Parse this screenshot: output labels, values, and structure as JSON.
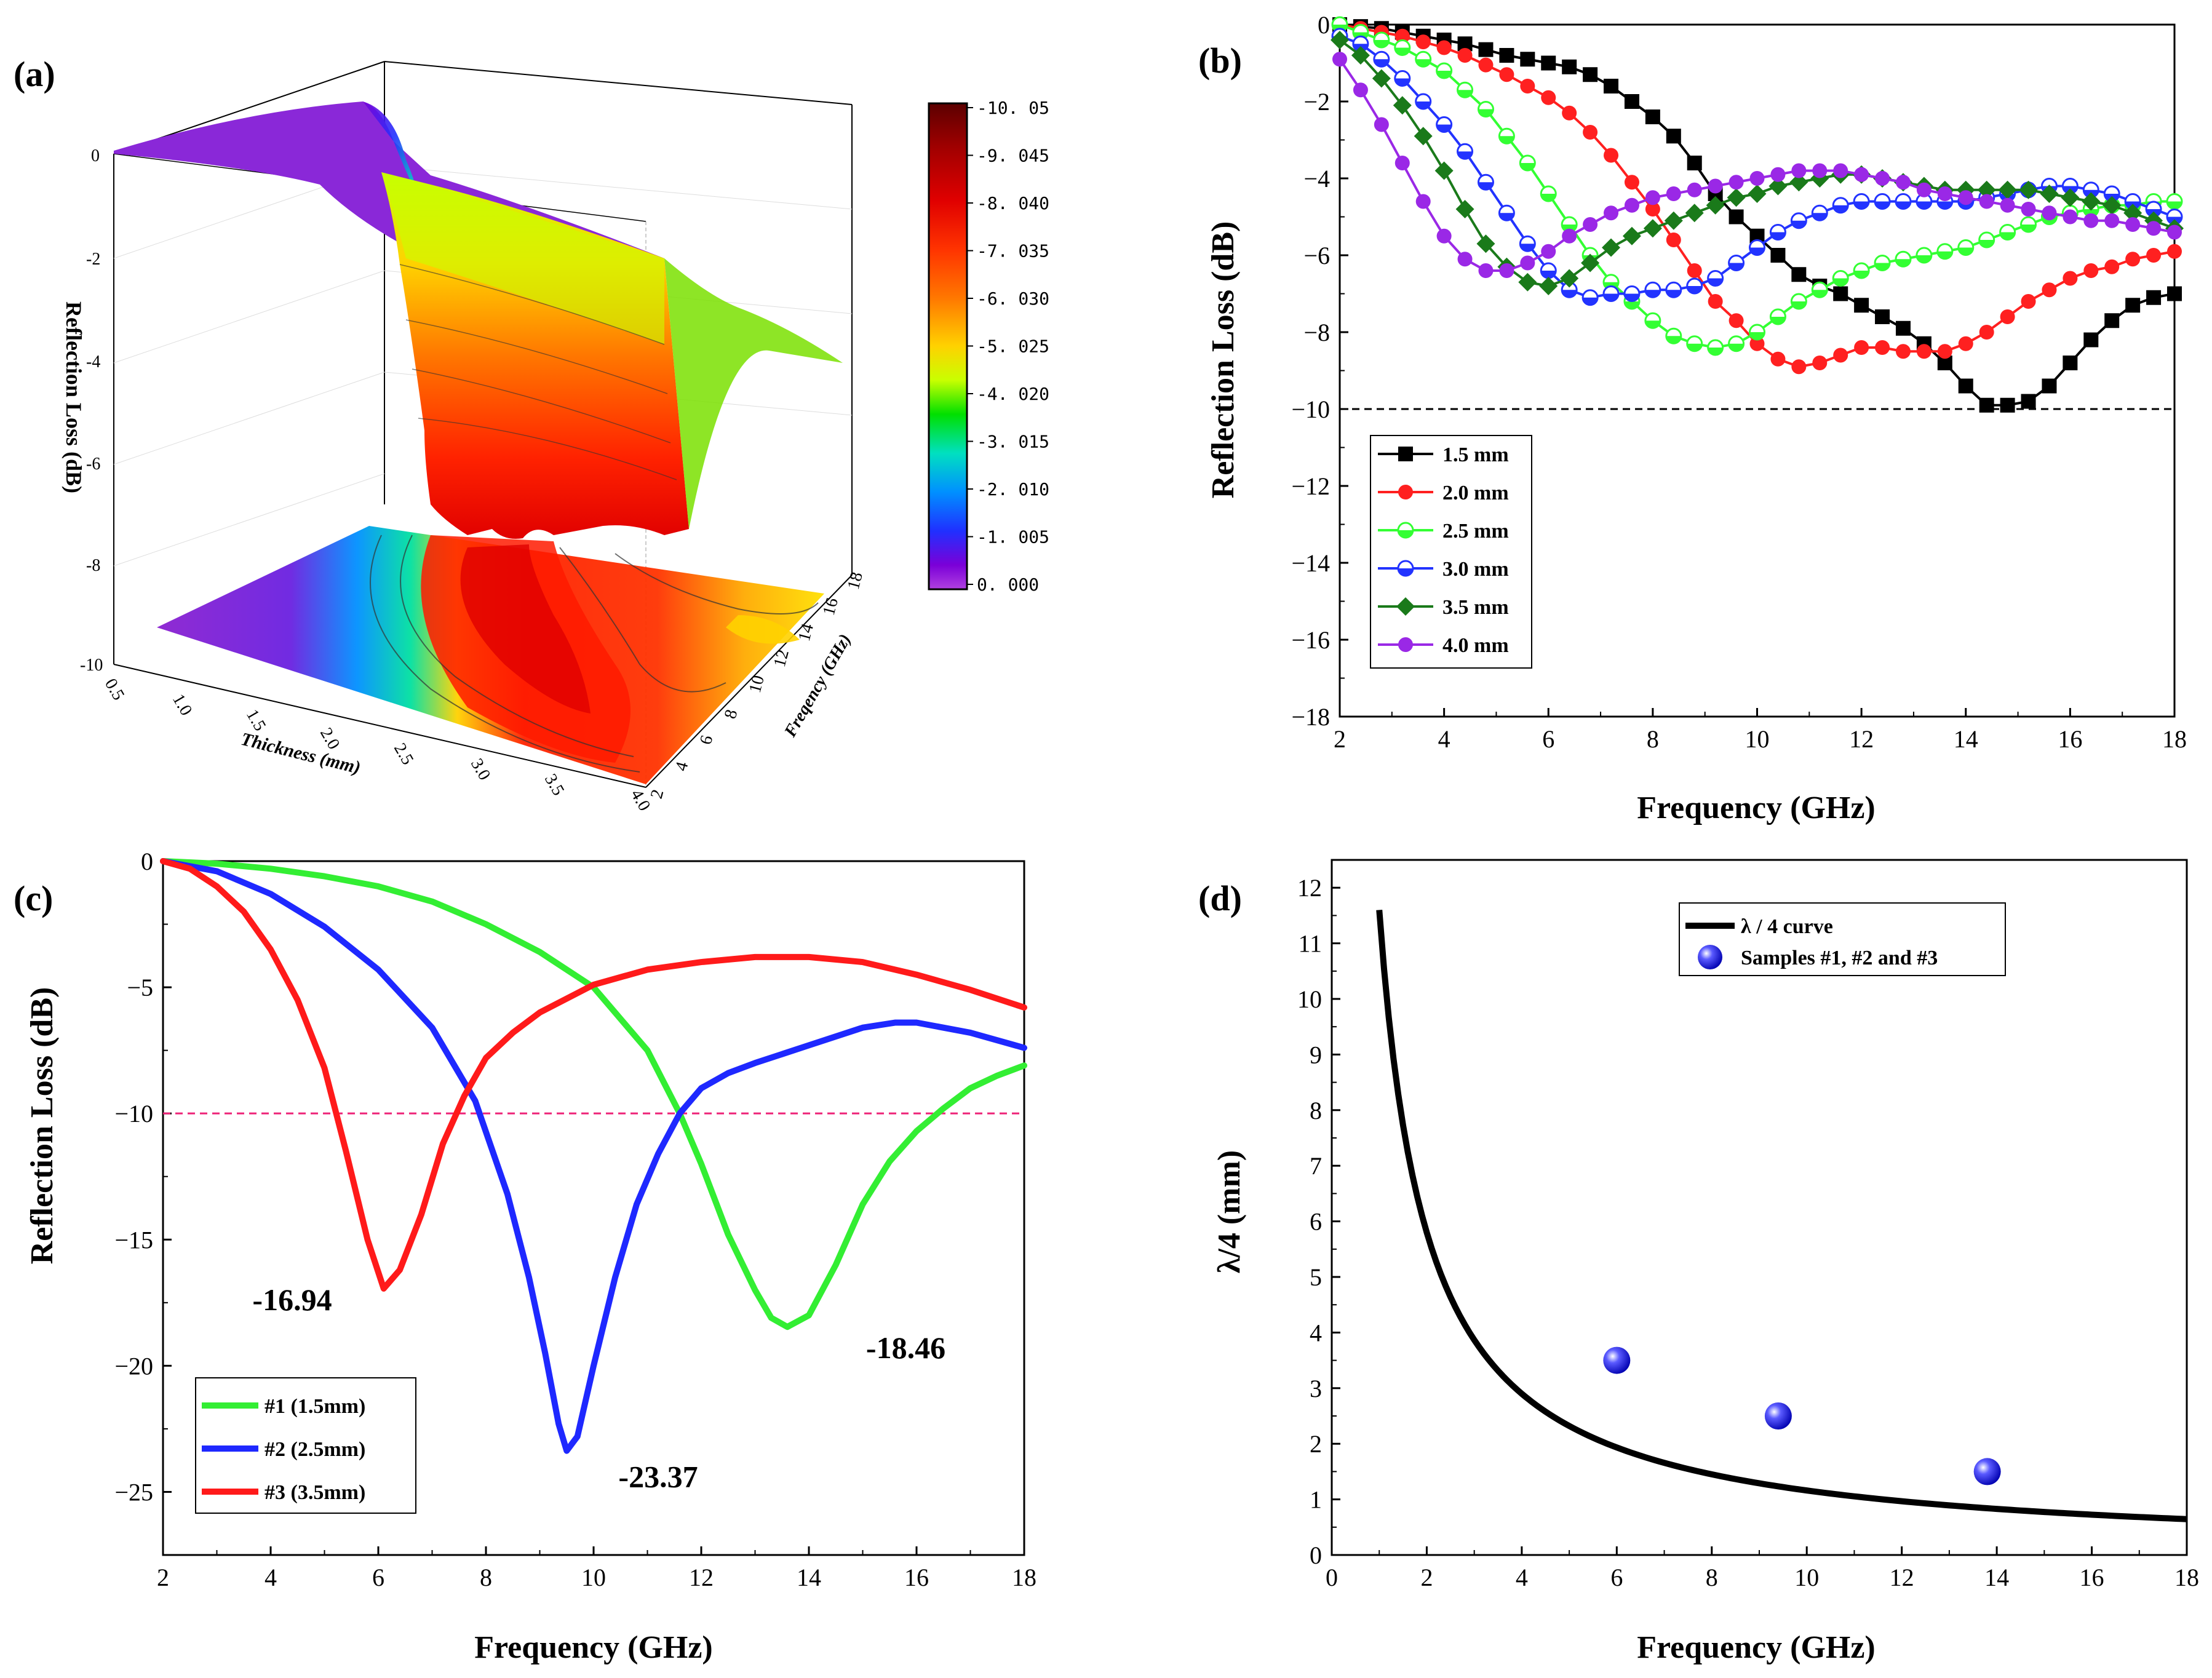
{
  "panels": {
    "a": {
      "label": "(a)"
    },
    "b": {
      "label": "(b)"
    },
    "c": {
      "label": "(c)"
    },
    "d": {
      "label": "(d)"
    }
  },
  "chart_data": [
    {
      "id": "a",
      "type": "surface3d",
      "zlabel": "Reflection Loss (dB)",
      "xlabel": "Thickness (mm)",
      "ylabel": "Freqency (GHz)",
      "z_ticks": [
        "0",
        "-2",
        "-4",
        "-6",
        "-8",
        "-10"
      ],
      "x_ticks": [
        "0.5",
        "1.0",
        "1.5",
        "2.0",
        "2.5",
        "3.0",
        "3.5",
        "4.0"
      ],
      "y_ticks": [
        "2",
        "4",
        "6",
        "8",
        "10",
        "12",
        "14",
        "16",
        "18"
      ],
      "colorbar": {
        "ticks": [
          "-10. 05",
          "-9. 045",
          "-8. 040",
          "-7. 035",
          "-6. 030",
          "-5. 025",
          "-4. 020",
          "-3. 015",
          "-2. 010",
          "-1. 005",
          "0. 000"
        ],
        "colors": [
          "#5c0000",
          "#a00000",
          "#e00000",
          "#ff3300",
          "#ff7700",
          "#ffd200",
          "#c8ff00",
          "#00e000",
          "#00e0c0",
          "#0090ff",
          "#2030ff",
          "#7a00d8",
          "#b040e0"
        ]
      }
    },
    {
      "id": "b",
      "type": "line",
      "xlabel": "Frequency (GHz)",
      "ylabel": "Reflection Loss (dB)",
      "xlim": [
        2,
        18
      ],
      "ylim": [
        -18,
        0
      ],
      "xticks": [
        2,
        4,
        6,
        8,
        10,
        12,
        14,
        16,
        18
      ],
      "yticks": [
        0,
        -2,
        -4,
        -6,
        -8,
        -10,
        -12,
        -14,
        -16,
        -18
      ],
      "reference_line": -10,
      "x": [
        2.0,
        2.4,
        2.8,
        3.2,
        3.6,
        4.0,
        4.4,
        4.8,
        5.2,
        5.6,
        6.0,
        6.4,
        6.8,
        7.2,
        7.6,
        8.0,
        8.4,
        8.8,
        9.2,
        9.6,
        10.0,
        10.4,
        10.8,
        11.2,
        11.6,
        12.0,
        12.4,
        12.8,
        13.2,
        13.6,
        14.0,
        14.4,
        14.8,
        15.2,
        15.6,
        16.0,
        16.4,
        16.8,
        17.2,
        17.6,
        18.0
      ],
      "series": [
        {
          "name": "1.5 mm",
          "color": "#000000",
          "marker": "square",
          "values": [
            0,
            -0.05,
            -0.1,
            -0.2,
            -0.3,
            -0.4,
            -0.5,
            -0.65,
            -0.8,
            -0.9,
            -1.0,
            -1.1,
            -1.3,
            -1.6,
            -2.0,
            -2.4,
            -2.9,
            -3.6,
            -4.4,
            -5.0,
            -5.5,
            -6.0,
            -6.5,
            -6.8,
            -7.0,
            -7.3,
            -7.6,
            -7.9,
            -8.3,
            -8.8,
            -9.4,
            -9.9,
            -9.9,
            -9.8,
            -9.4,
            -8.8,
            -8.2,
            -7.7,
            -7.3,
            -7.1,
            -7.0
          ]
        },
        {
          "name": "2.0 mm",
          "color": "#ff2020",
          "marker": "circle",
          "values": [
            0,
            -0.1,
            -0.2,
            -0.3,
            -0.45,
            -0.6,
            -0.8,
            -1.05,
            -1.3,
            -1.6,
            -1.9,
            -2.3,
            -2.8,
            -3.4,
            -4.1,
            -4.8,
            -5.6,
            -6.4,
            -7.2,
            -7.7,
            -8.3,
            -8.7,
            -8.9,
            -8.8,
            -8.6,
            -8.4,
            -8.4,
            -8.5,
            -8.5,
            -8.5,
            -8.3,
            -8.0,
            -7.6,
            -7.2,
            -6.9,
            -6.6,
            -6.4,
            -6.3,
            -6.1,
            -6.0,
            -5.9
          ]
        },
        {
          "name": "2.5 mm",
          "color": "#33ff33",
          "marker": "halfcircle",
          "values": [
            0,
            -0.2,
            -0.4,
            -0.6,
            -0.9,
            -1.2,
            -1.7,
            -2.2,
            -2.9,
            -3.6,
            -4.4,
            -5.2,
            -6.0,
            -6.7,
            -7.2,
            -7.7,
            -8.1,
            -8.3,
            -8.4,
            -8.3,
            -8.0,
            -7.6,
            -7.2,
            -6.9,
            -6.6,
            -6.4,
            -6.2,
            -6.1,
            -6.0,
            -5.9,
            -5.8,
            -5.6,
            -5.4,
            -5.2,
            -5.0,
            -4.9,
            -4.8,
            -4.7,
            -4.7,
            -4.6,
            -4.6
          ]
        },
        {
          "name": "3.0 mm",
          "color": "#2233ff",
          "marker": "halfcircle",
          "values": [
            -0.3,
            -0.5,
            -0.9,
            -1.4,
            -2.0,
            -2.6,
            -3.3,
            -4.1,
            -4.9,
            -5.7,
            -6.4,
            -6.9,
            -7.1,
            -7.0,
            -7.0,
            -6.9,
            -6.9,
            -6.8,
            -6.6,
            -6.2,
            -5.8,
            -5.4,
            -5.1,
            -4.9,
            -4.7,
            -4.6,
            -4.6,
            -4.6,
            -4.6,
            -4.6,
            -4.6,
            -4.5,
            -4.4,
            -4.3,
            -4.2,
            -4.2,
            -4.3,
            -4.4,
            -4.6,
            -4.8,
            -5.0
          ]
        },
        {
          "name": "3.5 mm",
          "color": "#1a7a1a",
          "marker": "diamond",
          "values": [
            -0.4,
            -0.8,
            -1.4,
            -2.1,
            -2.9,
            -3.8,
            -4.8,
            -5.7,
            -6.3,
            -6.7,
            -6.8,
            -6.6,
            -6.2,
            -5.8,
            -5.5,
            -5.3,
            -5.1,
            -4.9,
            -4.7,
            -4.5,
            -4.4,
            -4.2,
            -4.1,
            -4.0,
            -3.9,
            -3.9,
            -4.0,
            -4.1,
            -4.2,
            -4.3,
            -4.3,
            -4.3,
            -4.3,
            -4.3,
            -4.4,
            -4.5,
            -4.6,
            -4.7,
            -4.9,
            -5.1,
            -5.3
          ]
        },
        {
          "name": "4.0 mm",
          "color": "#9a28e6",
          "marker": "circle",
          "values": [
            -0.9,
            -1.7,
            -2.6,
            -3.6,
            -4.6,
            -5.5,
            -6.1,
            -6.4,
            -6.4,
            -6.2,
            -5.9,
            -5.5,
            -5.2,
            -4.9,
            -4.7,
            -4.5,
            -4.4,
            -4.3,
            -4.2,
            -4.1,
            -4.0,
            -3.9,
            -3.8,
            -3.8,
            -3.8,
            -3.9,
            -4.0,
            -4.1,
            -4.3,
            -4.4,
            -4.5,
            -4.6,
            -4.7,
            -4.8,
            -4.9,
            -5.0,
            -5.1,
            -5.1,
            -5.2,
            -5.3,
            -5.4
          ]
        }
      ]
    },
    {
      "id": "c",
      "type": "line",
      "xlabel": "Frequency (GHz)",
      "ylabel": "Reflection Loss (dB)",
      "xlim": [
        2,
        18
      ],
      "ylim": [
        -27.5,
        0
      ],
      "xticks": [
        2,
        4,
        6,
        8,
        10,
        12,
        14,
        16,
        18
      ],
      "yticks": [
        0,
        -5,
        -10,
        -15,
        -20,
        -25
      ],
      "reference_line": -10,
      "series": [
        {
          "name": "#1 (1.5mm)",
          "color": "#33ee33",
          "x": [
            2,
            3,
            4,
            5,
            6,
            7,
            8,
            9,
            10,
            11,
            11.6,
            12,
            12.5,
            13,
            13.3,
            13.6,
            14,
            14.5,
            15,
            15.5,
            16,
            16.5,
            17,
            17.5,
            18
          ],
          "values": [
            0,
            -0.1,
            -0.3,
            -0.6,
            -1.0,
            -1.6,
            -2.5,
            -3.6,
            -5.0,
            -7.5,
            -10.0,
            -12.0,
            -14.8,
            -17.0,
            -18.1,
            -18.46,
            -18.0,
            -16.0,
            -13.6,
            -11.9,
            -10.7,
            -9.8,
            -9.0,
            -8.5,
            -8.1
          ]
        },
        {
          "name": "#2 (2.5mm)",
          "color": "#1e28ff",
          "x": [
            2,
            3,
            4,
            5,
            6,
            7,
            7.8,
            8.4,
            8.8,
            9.1,
            9.35,
            9.5,
            9.7,
            10,
            10.4,
            10.8,
            11.2,
            11.6,
            12,
            12.5,
            13,
            14,
            15,
            15.6,
            16,
            17,
            18
          ],
          "values": [
            0,
            -0.4,
            -1.3,
            -2.6,
            -4.3,
            -6.6,
            -9.5,
            -13.2,
            -16.5,
            -19.5,
            -22.3,
            -23.37,
            -22.8,
            -20.0,
            -16.5,
            -13.6,
            -11.6,
            -10.0,
            -9.0,
            -8.4,
            -8.0,
            -7.3,
            -6.6,
            -6.4,
            -6.4,
            -6.8,
            -7.4
          ]
        },
        {
          "name": "#3 (3.5mm)",
          "color": "#ff1a1a",
          "x": [
            2,
            2.5,
            3,
            3.5,
            4,
            4.5,
            5,
            5.4,
            5.8,
            6.1,
            6.4,
            6.8,
            7.2,
            7.6,
            8,
            8.5,
            9,
            10,
            11,
            12,
            13,
            14,
            15,
            16,
            17,
            18
          ],
          "values": [
            0,
            -0.3,
            -1.0,
            -2.0,
            -3.5,
            -5.5,
            -8.2,
            -11.5,
            -15.0,
            -16.94,
            -16.2,
            -14.0,
            -11.2,
            -9.3,
            -7.8,
            -6.8,
            -6.0,
            -4.9,
            -4.3,
            -4.0,
            -3.8,
            -3.8,
            -4.0,
            -4.5,
            -5.1,
            -5.8
          ]
        }
      ],
      "annotations": [
        {
          "text": "-16.94",
          "x": 4.4,
          "y": -17.8
        },
        {
          "text": "-23.37",
          "x": 11.2,
          "y": -24.8
        },
        {
          "text": "-18.46",
          "x": 15.8,
          "y": -19.7
        }
      ]
    },
    {
      "id": "d",
      "type": "line+scatter",
      "xlabel": "Frequency (GHz)",
      "ylabel": "λ/4  (mm)",
      "xlim": [
        0,
        18
      ],
      "ylim": [
        0,
        12.5
      ],
      "xticks": [
        0,
        2,
        4,
        6,
        8,
        10,
        12,
        14,
        16,
        18
      ],
      "yticks": [
        0,
        1,
        2,
        3,
        4,
        5,
        6,
        7,
        8,
        9,
        10,
        11,
        12
      ],
      "curve": {
        "name": "λ / 4   curve",
        "color": "#000000",
        "k": 11.6
      },
      "samples": {
        "name": "Samples #1, #2 and #3",
        "color": "#1a1aff",
        "points": [
          {
            "x": 6.0,
            "y": 3.5
          },
          {
            "x": 9.4,
            "y": 2.5
          },
          {
            "x": 13.8,
            "y": 1.5
          }
        ]
      }
    }
  ]
}
